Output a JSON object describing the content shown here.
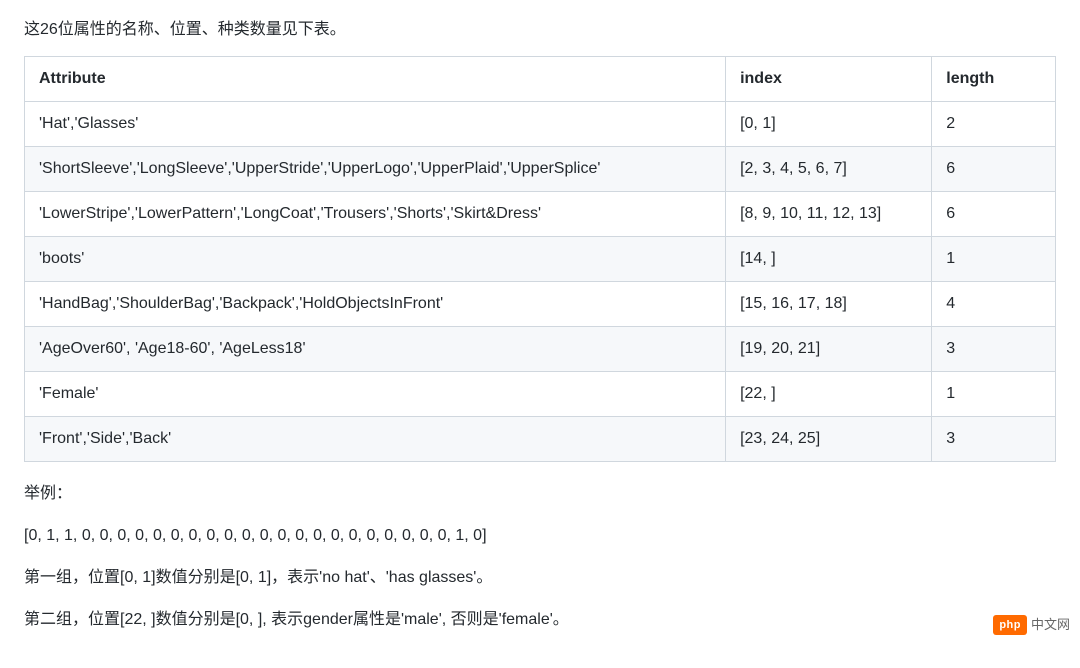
{
  "intro": "这26位属性的名称、位置、种类数量见下表。",
  "table": {
    "columns": [
      "Attribute",
      "index",
      "length"
    ],
    "rows": [
      [
        "'Hat','Glasses'",
        "[0, 1]",
        "2"
      ],
      [
        "'ShortSleeve','LongSleeve','UpperStride','UpperLogo','UpperPlaid','UpperSplice'",
        "[2, 3, 4, 5, 6, 7]",
        "6"
      ],
      [
        "'LowerStripe','LowerPattern','LongCoat','Trousers','Shorts','Skirt&Dress'",
        "[8, 9, 10, 11, 12, 13]",
        "6"
      ],
      [
        "'boots'",
        "[14, ]",
        "1"
      ],
      [
        "'HandBag','ShoulderBag','Backpack','HoldObjectsInFront'",
        "[15, 16, 17, 18]",
        "4"
      ],
      [
        "'AgeOver60', 'Age18-60', 'AgeLess18'",
        "[19, 20, 21]",
        "3"
      ],
      [
        "'Female'",
        "[22, ]",
        "1"
      ],
      [
        "'Front','Side','Back'",
        "[23, 24, 25]",
        "3"
      ]
    ],
    "col_widths": [
      "68%",
      "20%",
      "12%"
    ],
    "border_color": "#d0d7de",
    "stripe_color": "#f6f8fa",
    "header_bg": "#ffffff"
  },
  "example_label": "举例：",
  "example_vector": "[0, 1, 1, 0, 0, 0, 0, 0, 0, 0, 0, 0, 0, 0, 0, 0, 0, 0, 0, 0, 0, 0, 0, 0, 1, 0]",
  "group1": "第一组，位置[0, 1]数值分别是[0, 1]，表示'no hat'、'has glasses'。",
  "group2": "第二组，位置[22, ]数值分别是[0, ], 表示gender属性是'male', 否则是'female'。",
  "watermark": {
    "badge": "php",
    "text": "中文网"
  }
}
